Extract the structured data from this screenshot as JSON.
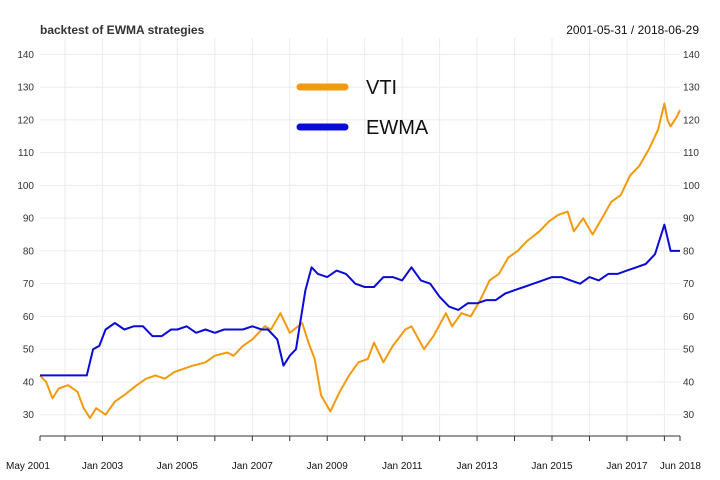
{
  "chart_data": {
    "type": "line",
    "title": "backtest of EWMA strategies",
    "date_range": "2001-05-31 / 2018-06-29",
    "xlabel": "",
    "ylabel": "",
    "x_range": [
      "2001-05",
      "2018-06"
    ],
    "x_tick_labels": [
      "May 2001",
      "Jan 2003",
      "Jan 2005",
      "Jan 2007",
      "Jan 2009",
      "Jan 2011",
      "Jan 2013",
      "Jan 2015",
      "Jan 2017",
      "Jun 2018"
    ],
    "ylim": [
      23.5,
      145
    ],
    "y_ticks": [
      30,
      40,
      50,
      60,
      70,
      80,
      90,
      100,
      110,
      120,
      130,
      140
    ],
    "y_tick_labels": [
      "30",
      "40",
      "50",
      "60",
      "70",
      "80",
      "90",
      "100",
      "110",
      "120",
      "130",
      "140"
    ],
    "right_axis_tick_labels": [
      "30",
      "40",
      "50",
      "60",
      "70",
      "80",
      "90",
      "100",
      "110",
      "120",
      "130",
      "140"
    ],
    "grid": true,
    "legend_position": "top-center",
    "series": [
      {
        "name": "VTI",
        "color": "#f29a0e",
        "points": [
          [
            "2001-05",
            42
          ],
          [
            "2001-07",
            40
          ],
          [
            "2001-09",
            35
          ],
          [
            "2001-11",
            38
          ],
          [
            "2002-02",
            39
          ],
          [
            "2002-05",
            37
          ],
          [
            "2002-07",
            32
          ],
          [
            "2002-09",
            29
          ],
          [
            "2002-11",
            32
          ],
          [
            "2003-02",
            30
          ],
          [
            "2003-05",
            34
          ],
          [
            "2003-08",
            36
          ],
          [
            "2003-12",
            39
          ],
          [
            "2004-03",
            41
          ],
          [
            "2004-06",
            42
          ],
          [
            "2004-09",
            41
          ],
          [
            "2004-12",
            43
          ],
          [
            "2005-03",
            44
          ],
          [
            "2005-06",
            45
          ],
          [
            "2005-10",
            46
          ],
          [
            "2006-01",
            48
          ],
          [
            "2006-05",
            49
          ],
          [
            "2006-07",
            48
          ],
          [
            "2006-10",
            51
          ],
          [
            "2007-01",
            53
          ],
          [
            "2007-05",
            57
          ],
          [
            "2007-07",
            56
          ],
          [
            "2007-10",
            61
          ],
          [
            "2008-01",
            55
          ],
          [
            "2008-05",
            58
          ],
          [
            "2008-07",
            52
          ],
          [
            "2008-09",
            47
          ],
          [
            "2008-11",
            36
          ],
          [
            "2009-02",
            31
          ],
          [
            "2009-05",
            37
          ],
          [
            "2009-08",
            42
          ],
          [
            "2009-11",
            46
          ],
          [
            "2010-02",
            47
          ],
          [
            "2010-04",
            52
          ],
          [
            "2010-07",
            46
          ],
          [
            "2010-10",
            51
          ],
          [
            "2011-02",
            56
          ],
          [
            "2011-04",
            57
          ],
          [
            "2011-08",
            50
          ],
          [
            "2011-11",
            54
          ],
          [
            "2012-03",
            61
          ],
          [
            "2012-05",
            57
          ],
          [
            "2012-08",
            61
          ],
          [
            "2012-11",
            60
          ],
          [
            "2013-02",
            65
          ],
          [
            "2013-05",
            71
          ],
          [
            "2013-08",
            73
          ],
          [
            "2013-11",
            78
          ],
          [
            "2014-02",
            80
          ],
          [
            "2014-05",
            83
          ],
          [
            "2014-09",
            86
          ],
          [
            "2014-12",
            89
          ],
          [
            "2015-03",
            91
          ],
          [
            "2015-06",
            92
          ],
          [
            "2015-08",
            86
          ],
          [
            "2015-11",
            90
          ],
          [
            "2016-02",
            85
          ],
          [
            "2016-05",
            90
          ],
          [
            "2016-08",
            95
          ],
          [
            "2016-11",
            97
          ],
          [
            "2017-02",
            103
          ],
          [
            "2017-05",
            106
          ],
          [
            "2017-08",
            111
          ],
          [
            "2017-11",
            117
          ],
          [
            "2018-01",
            125
          ],
          [
            "2018-02",
            120
          ],
          [
            "2018-03",
            118
          ],
          [
            "2018-05",
            121
          ],
          [
            "2018-06",
            123
          ]
        ]
      },
      {
        "name": "EWMA",
        "color": "#0b0bd6",
        "points": [
          [
            "2001-05",
            42
          ],
          [
            "2001-09",
            42
          ],
          [
            "2002-01",
            42
          ],
          [
            "2002-05",
            42
          ],
          [
            "2002-08",
            42
          ],
          [
            "2002-10",
            50
          ],
          [
            "2002-12",
            51
          ],
          [
            "2003-02",
            56
          ],
          [
            "2003-05",
            58
          ],
          [
            "2003-08",
            56
          ],
          [
            "2003-11",
            57
          ],
          [
            "2004-02",
            57
          ],
          [
            "2004-05",
            54
          ],
          [
            "2004-08",
            54
          ],
          [
            "2004-11",
            56
          ],
          [
            "2005-01",
            56
          ],
          [
            "2005-04",
            57
          ],
          [
            "2005-07",
            55
          ],
          [
            "2005-10",
            56
          ],
          [
            "2006-01",
            55
          ],
          [
            "2006-04",
            56
          ],
          [
            "2006-07",
            56
          ],
          [
            "2006-10",
            56
          ],
          [
            "2007-01",
            57
          ],
          [
            "2007-04",
            56
          ],
          [
            "2007-06",
            56
          ],
          [
            "2007-09",
            53
          ],
          [
            "2007-11",
            45
          ],
          [
            "2008-01",
            48
          ],
          [
            "2008-03",
            50
          ],
          [
            "2008-06",
            68
          ],
          [
            "2008-08",
            75
          ],
          [
            "2008-10",
            73
          ],
          [
            "2009-01",
            72
          ],
          [
            "2009-04",
            74
          ],
          [
            "2009-07",
            73
          ],
          [
            "2009-10",
            70
          ],
          [
            "2010-01",
            69
          ],
          [
            "2010-04",
            69
          ],
          [
            "2010-07",
            72
          ],
          [
            "2010-10",
            72
          ],
          [
            "2011-01",
            71
          ],
          [
            "2011-04",
            75
          ],
          [
            "2011-07",
            71
          ],
          [
            "2011-10",
            70
          ],
          [
            "2012-01",
            66
          ],
          [
            "2012-04",
            63
          ],
          [
            "2012-07",
            62
          ],
          [
            "2012-10",
            64
          ],
          [
            "2013-01",
            64
          ],
          [
            "2013-04",
            65
          ],
          [
            "2013-07",
            65
          ],
          [
            "2013-10",
            67
          ],
          [
            "2014-01",
            68
          ],
          [
            "2014-04",
            69
          ],
          [
            "2014-07",
            70
          ],
          [
            "2014-10",
            71
          ],
          [
            "2015-01",
            72
          ],
          [
            "2015-04",
            72
          ],
          [
            "2015-07",
            71
          ],
          [
            "2015-10",
            70
          ],
          [
            "2016-01",
            72
          ],
          [
            "2016-04",
            71
          ],
          [
            "2016-07",
            73
          ],
          [
            "2016-10",
            73
          ],
          [
            "2017-01",
            74
          ],
          [
            "2017-04",
            75
          ],
          [
            "2017-07",
            76
          ],
          [
            "2017-10",
            79
          ],
          [
            "2018-01",
            88
          ],
          [
            "2018-03",
            80
          ],
          [
            "2018-06",
            80
          ]
        ]
      }
    ]
  }
}
